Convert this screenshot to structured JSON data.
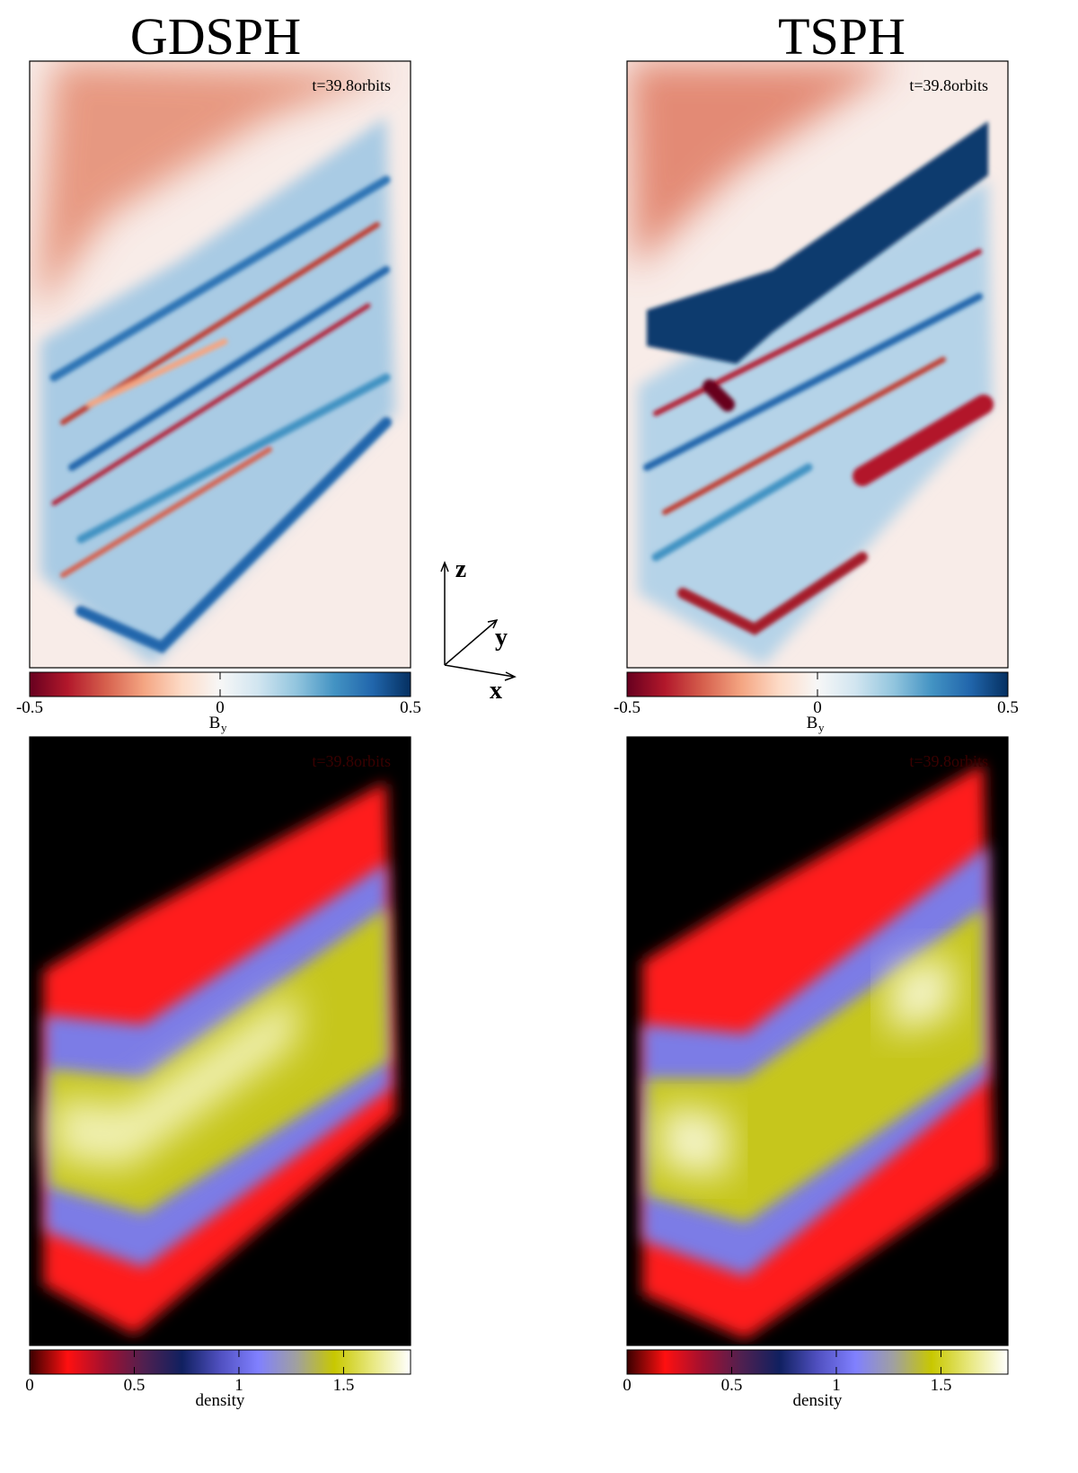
{
  "figure": {
    "titles": [
      "GDSPH",
      "TSPH"
    ],
    "rows": [
      {
        "time_label": "t=39.8orbits",
        "colorbar": {
          "label": "B",
          "label_sub": "y",
          "clim": [
            -0.5,
            0.5
          ],
          "ticks": [
            -0.5,
            0,
            0.5
          ],
          "colormap": [
            "#67001f",
            "#b2182b",
            "#d6604d",
            "#f4a582",
            "#fddbc7",
            "#f7f7f7",
            "#d1e5f0",
            "#92c5de",
            "#4393c3",
            "#2166ac",
            "#053061"
          ]
        }
      },
      {
        "time_label": "t=39.8orbits",
        "colorbar": {
          "label": "density",
          "clim": [
            0,
            1.82
          ],
          "ticks": [
            0,
            0.5,
            1,
            1.5
          ],
          "colormap": [
            "#3a0000",
            "#ff1010",
            "#a01030",
            "#502050",
            "#102060",
            "#5050c0",
            "#8080ff",
            "#a0a0a0",
            "#c8c800",
            "#e8e880",
            "#ffffff"
          ]
        }
      }
    ],
    "axes_triad": [
      "z",
      "y",
      "x"
    ]
  }
}
